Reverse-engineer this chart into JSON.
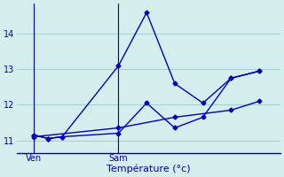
{
  "title": "Température (°c)",
  "background_color": "#d4eeee",
  "grid_color": "#a8cccc",
  "line_color": "#0000bb",
  "x_ticks_labels": [
    "Ven",
    "Sam"
  ],
  "x_ticks_pos": [
    0,
    6
  ],
  "ylim": [
    10.65,
    14.85
  ],
  "yticks": [
    11,
    12,
    13,
    14
  ],
  "ytick_fontsize": 7,
  "xtick_fontsize": 7,
  "xlabel_fontsize": 8,
  "xlim": [
    -1.2,
    17.5
  ],
  "series": [
    {
      "x": [
        0,
        1,
        2,
        6,
        8,
        10,
        12,
        14,
        16
      ],
      "y": [
        11.15,
        11.05,
        11.1,
        13.1,
        14.6,
        12.6,
        12.05,
        12.75,
        12.95
      ]
    },
    {
      "x": [
        0,
        1,
        2,
        6,
        8,
        10,
        12,
        14,
        16
      ],
      "y": [
        11.15,
        11.05,
        11.1,
        11.2,
        12.05,
        11.35,
        11.65,
        12.75,
        12.95
      ]
    },
    {
      "x": [
        0,
        6,
        10,
        14,
        16
      ],
      "y": [
        11.1,
        11.35,
        11.65,
        11.85,
        12.1
      ]
    }
  ]
}
